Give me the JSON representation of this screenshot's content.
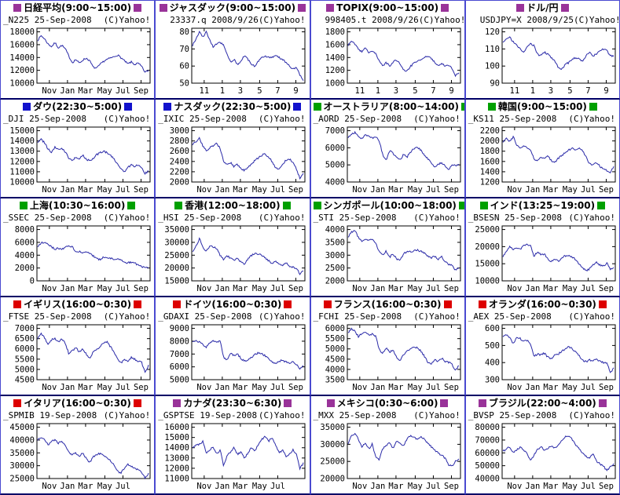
{
  "copyright_label": "(C)Yahoo!",
  "palette": {
    "purple": "#993399",
    "blue": "#1212cc",
    "green": "#00a000",
    "red": "#dd0000",
    "line": "#2a2aa8",
    "plot_border": "#000000",
    "cell_border": "#4a4ad0",
    "row_border": "#000066"
  },
  "chart_data": [
    {
      "type": "line",
      "market": "日経平均",
      "hours": "(9:00~15:00)",
      "marker": "purple",
      "label": "_N225 25-Sep-2008",
      "y_ticks": [
        18000,
        16000,
        14000,
        12000,
        10000
      ],
      "x_labels": [
        "Nov",
        "Jan",
        "Mar",
        "May",
        "Jul",
        "Sep"
      ],
      "values": [
        16700,
        17400,
        16900,
        16100,
        15700,
        16300,
        15500,
        15900,
        15300,
        14200,
        13200,
        13700,
        13100,
        13600,
        13900,
        13500,
        12500,
        12300,
        12900,
        13400,
        13700,
        13900,
        14100,
        14400,
        14000,
        13500,
        13000,
        13300,
        12900,
        13100,
        12600,
        11700,
        12000
      ]
    },
    {
      "type": "line",
      "market": "ジャスダック",
      "hours": "(9:00~15:00)",
      "marker": "purple",
      "label": "23337.q 2008/9/26",
      "y_ticks": [
        80,
        70,
        60,
        50
      ],
      "x_labels": [
        "11",
        "1",
        "3",
        "5",
        "7",
        "9"
      ],
      "values": [
        72,
        76,
        80,
        77,
        80,
        75,
        71,
        73,
        74,
        72,
        67,
        62,
        64,
        61,
        63,
        66,
        64,
        61,
        60,
        63,
        65,
        66,
        65,
        65,
        66,
        65,
        64,
        62,
        60,
        58,
        59,
        55,
        52
      ]
    },
    {
      "type": "line",
      "market": "TOPIX",
      "hours": "(9:00~15:00)",
      "marker": "purple",
      "label": "998405.t 2008/9/26",
      "y_ticks": [
        1800,
        1600,
        1400,
        1200,
        1000
      ],
      "x_labels": [
        "11",
        "1",
        "3",
        "5",
        "7",
        "9"
      ],
      "values": [
        1590,
        1650,
        1610,
        1530,
        1490,
        1550,
        1470,
        1510,
        1460,
        1350,
        1270,
        1320,
        1270,
        1330,
        1360,
        1310,
        1200,
        1180,
        1260,
        1310,
        1340,
        1370,
        1400,
        1420,
        1380,
        1330,
        1280,
        1310,
        1260,
        1280,
        1230,
        1120,
        1150
      ]
    },
    {
      "type": "line",
      "market": "ドル/円",
      "hours": "",
      "marker": "purple",
      "label": "USDJPY=X 2008/9/25",
      "y_ticks": [
        120,
        110,
        100,
        90
      ],
      "x_labels": [
        "11",
        "1",
        "3",
        "5",
        "7",
        "9"
      ],
      "values": [
        114,
        116,
        117,
        114,
        112,
        110,
        108,
        111,
        113,
        112,
        107,
        106,
        108,
        107,
        105,
        103,
        99,
        98,
        101,
        102,
        104,
        105,
        104,
        103,
        106,
        108,
        106,
        107,
        109,
        110,
        109,
        106,
        106
      ]
    },
    {
      "type": "line",
      "market": "ダウ",
      "hours": "(22:30~5:00)",
      "marker": "blue",
      "label": "_DJI 25-Sep-2008",
      "y_ticks": [
        15000,
        14000,
        13000,
        12000,
        11000,
        10000
      ],
      "x_labels": [
        "Nov",
        "Jan",
        "Mar",
        "May",
        "Jul",
        "Sep"
      ],
      "values": [
        13900,
        14150,
        13800,
        13200,
        12900,
        13400,
        13250,
        13300,
        12900,
        12300,
        12100,
        12400,
        12250,
        12600,
        12250,
        12050,
        12300,
        12650,
        12850,
        13000,
        12850,
        12600,
        12250,
        11800,
        11250,
        11000,
        11400,
        11650,
        11500,
        11700,
        11350,
        10850,
        11050
      ]
    },
    {
      "type": "line",
      "market": "ナスダック",
      "hours": "(22:30~5:00)",
      "marker": "blue",
      "label": "_IXIC 25-Sep-2008",
      "y_ticks": [
        3000,
        2800,
        2600,
        2400,
        2200,
        2000
      ],
      "x_labels": [
        "Nov",
        "Jan",
        "Mar",
        "May",
        "Jul",
        "Sep"
      ],
      "values": [
        2720,
        2790,
        2850,
        2700,
        2610,
        2670,
        2700,
        2750,
        2650,
        2400,
        2330,
        2380,
        2300,
        2340,
        2250,
        2230,
        2290,
        2350,
        2420,
        2470,
        2520,
        2550,
        2480,
        2400,
        2280,
        2250,
        2350,
        2420,
        2450,
        2380,
        2250,
        2080,
        2180
      ]
    },
    {
      "type": "line",
      "market": "オーストラリア",
      "hours": "(8:00~14:00)",
      "marker": "green",
      "label": "_AORD 25-Sep-2008",
      "y_ticks": [
        7000,
        6000,
        5000,
        4000
      ],
      "x_labels": [
        "Nov",
        "Jan",
        "Mar",
        "May",
        "Jul",
        "Sep"
      ],
      "values": [
        6600,
        6800,
        6900,
        6650,
        6550,
        6750,
        6650,
        6550,
        6650,
        6400,
        5600,
        5300,
        5850,
        5650,
        5450,
        5300,
        5600,
        5450,
        5750,
        5950,
        6050,
        5850,
        5600,
        5350,
        5100,
        4900,
        5050,
        5100,
        4950,
        4700,
        5050,
        4950,
        5000
      ]
    },
    {
      "type": "line",
      "market": "韓国",
      "hours": "(9:00~15:00)",
      "marker": "green",
      "label": "_KS11 25-Sep-2008",
      "y_ticks": [
        2200,
        2000,
        1800,
        1600,
        1400,
        1200
      ],
      "x_labels": [
        "Nov",
        "Jan",
        "Mar",
        "May",
        "Jul",
        "Sep"
      ],
      "values": [
        1980,
        2060,
        1990,
        2080,
        1920,
        1860,
        1920,
        1870,
        1830,
        1640,
        1600,
        1690,
        1650,
        1700,
        1620,
        1580,
        1660,
        1720,
        1770,
        1820,
        1860,
        1830,
        1870,
        1810,
        1690,
        1560,
        1530,
        1580,
        1510,
        1450,
        1420,
        1390,
        1490
      ]
    },
    {
      "type": "line",
      "market": "上海",
      "hours": "(10:30~16:00)",
      "marker": "green",
      "label": "_SSEC 25-Sep-2008",
      "y_ticks": [
        8000,
        6000,
        4000,
        2000,
        0
      ],
      "x_labels": [
        "Nov",
        "Jan",
        "Mar",
        "May",
        "Jul",
        "Sep"
      ],
      "values": [
        5400,
        5900,
        6100,
        5700,
        5300,
        4900,
        5100,
        4950,
        5250,
        5350,
        5400,
        4450,
        4550,
        4350,
        4550,
        4300,
        3900,
        3450,
        3350,
        3650,
        3700,
        3550,
        3400,
        3500,
        3250,
        2900,
        2800,
        2900,
        2750,
        2450,
        2300,
        1950,
        2150
      ]
    },
    {
      "type": "line",
      "market": "香港",
      "hours": "(12:00~18:00)",
      "marker": "green",
      "label": "_HSI 25-Sep-2008",
      "y_ticks": [
        35000,
        30000,
        25000,
        20000,
        15000
      ],
      "x_labels": [
        "Nov",
        "Jan",
        "Mar",
        "May",
        "Jul",
        "Sep"
      ],
      "values": [
        26500,
        28500,
        31500,
        28000,
        26500,
        28800,
        28200,
        27500,
        24800,
        23200,
        24800,
        23800,
        22800,
        23800,
        22200,
        21500,
        23500,
        24800,
        25800,
        25500,
        24800,
        24000,
        22800,
        21800,
        22500,
        21300,
        21000,
        22300,
        20800,
        20300,
        19800,
        17800,
        18800
      ]
    },
    {
      "type": "line",
      "market": "シンガポール",
      "hours": "(10:00~18:00)",
      "marker": "green",
      "label": "_STI 25-Sep-2008",
      "y_ticks": [
        4000,
        3500,
        3000,
        2500,
        2000
      ],
      "x_labels": [
        "Nov",
        "Jan",
        "Mar",
        "May",
        "Jul",
        "Sep"
      ],
      "values": [
        3720,
        3900,
        3950,
        3680,
        3520,
        3650,
        3570,
        3620,
        3450,
        3120,
        3000,
        3160,
        2920,
        3060,
        2860,
        2780,
        3050,
        3150,
        3130,
        3180,
        3200,
        3150,
        3080,
        2980,
        2900,
        2950,
        2850,
        2950,
        2750,
        2650,
        2600,
        2420,
        2500
      ]
    },
    {
      "type": "line",
      "market": "インド",
      "hours": "(13:25~19:00)",
      "marker": "green",
      "label": "_BSESN 25-Sep-2008",
      "y_ticks": [
        25000,
        20000,
        15000,
        10000
      ],
      "x_labels": [
        "Nov",
        "Jan",
        "Mar",
        "May",
        "Jul",
        "Sep"
      ],
      "values": [
        17200,
        18700,
        20000,
        19000,
        19600,
        19300,
        20300,
        20700,
        20300,
        17200,
        18500,
        17600,
        17900,
        16300,
        15600,
        16500,
        15700,
        16700,
        17300,
        17500,
        16900,
        16300,
        15000,
        13800,
        13000,
        13500,
        14600,
        15400,
        14600,
        14300,
        15200,
        13400,
        13700
      ]
    },
    {
      "type": "line",
      "market": "イギリス",
      "hours": "(16:00~0:30)",
      "marker": "red",
      "label": "_FTSE 25-Sep-2008",
      "y_ticks": [
        7000,
        6500,
        6000,
        5500,
        5000,
        4500
      ],
      "x_labels": [
        "Nov",
        "Jan",
        "Mar",
        "May",
        "Jul",
        "Sep"
      ],
      "values": [
        6500,
        6730,
        6550,
        6200,
        6450,
        6500,
        6350,
        6480,
        6250,
        5750,
        5900,
        6050,
        5850,
        6000,
        5750,
        5550,
        5850,
        6000,
        6100,
        6300,
        6350,
        6100,
        5850,
        5550,
        5300,
        5500,
        5350,
        5600,
        5500,
        5400,
        5350,
        4850,
        5200
      ]
    },
    {
      "type": "line",
      "market": "ドイツ",
      "hours": "(16:00~0:30)",
      "marker": "red",
      "label": "_GDAXI 25-Sep-2008",
      "y_ticks": [
        9000,
        8000,
        7000,
        6000,
        5000
      ],
      "x_labels": [
        "Nov",
        "Jan",
        "Mar",
        "May",
        "Jul",
        "Sep"
      ],
      "values": [
        7900,
        8050,
        7950,
        7750,
        7550,
        7850,
        8000,
        7900,
        8050,
        6700,
        6500,
        7050,
        6850,
        7000,
        6650,
        6450,
        6550,
        6750,
        6950,
        7100,
        7050,
        6850,
        6600,
        6350,
        6250,
        6450,
        6500,
        6400,
        6300,
        6450,
        6200,
        5850,
        6100
      ]
    },
    {
      "type": "line",
      "market": "フランス",
      "hours": "(16:00~0:30)",
      "marker": "red",
      "label": "_FCHI 25-Sep-2008",
      "y_ticks": [
        6000,
        5500,
        5000,
        4500,
        4000,
        3500
      ],
      "x_labels": [
        "Nov",
        "Jan",
        "Mar",
        "May",
        "Jul",
        "Sep"
      ],
      "values": [
        5780,
        6000,
        5850,
        5600,
        5750,
        5850,
        5650,
        5750,
        5600,
        4950,
        4800,
        5050,
        4850,
        4950,
        4600,
        4450,
        4700,
        4900,
        5000,
        5100,
        5050,
        4900,
        4650,
        4350,
        4250,
        4450,
        4400,
        4550,
        4400,
        4350,
        4250,
        3950,
        4200
      ]
    },
    {
      "type": "line",
      "market": "オランダ",
      "hours": "(16:00~0:30)",
      "marker": "red",
      "label": "_AEX 25-Sep-2008",
      "y_ticks": [
        600,
        500,
        400,
        300
      ],
      "x_labels": [
        "Nov",
        "Jan",
        "Mar",
        "May",
        "Jul",
        "Sep"
      ],
      "values": [
        548,
        565,
        545,
        510,
        545,
        540,
        525,
        530,
        510,
        435,
        450,
        445,
        455,
        430,
        425,
        445,
        450,
        465,
        480,
        492,
        480,
        465,
        440,
        415,
        405,
        415,
        410,
        418,
        408,
        400,
        395,
        345,
        365
      ]
    },
    {
      "type": "line",
      "market": "イタリア",
      "hours": "(16:00~0:30)",
      "marker": "red",
      "label": "_SPMIB 19-Sep-2008",
      "y_ticks": [
        45000,
        40000,
        35000,
        30000,
        25000
      ],
      "x_labels": [
        "Nov",
        "Jan",
        "Mar",
        "May",
        "Jul"
      ],
      "values": [
        40000,
        41200,
        40300,
        38000,
        39800,
        40000,
        38800,
        39500,
        38000,
        35200,
        34300,
        35000,
        33800,
        34800,
        33000,
        31200,
        33500,
        34300,
        34800,
        34300,
        33200,
        31800,
        30300,
        28000,
        27000,
        29000,
        30500,
        29800,
        29000,
        28300,
        27500,
        25300,
        26800
      ]
    },
    {
      "type": "line",
      "market": "カナダ",
      "hours": "(23:30~6:30)",
      "marker": "purple",
      "label": "_GSPTSE 19-Sep-2008",
      "y_ticks": [
        16000,
        15000,
        14000,
        13000,
        12000,
        11000
      ],
      "x_labels": [
        "Nov",
        "Jan",
        "Mar",
        "May",
        "Jul"
      ],
      "values": [
        14000,
        14250,
        14350,
        14600,
        13400,
        13800,
        14050,
        13450,
        13750,
        12200,
        13200,
        13600,
        14050,
        13350,
        13550,
        12950,
        13500,
        14000,
        13600,
        14350,
        14800,
        15100,
        14600,
        15050,
        14200,
        13500,
        13750,
        13150,
        13350,
        13800,
        13400,
        11950,
        12500
      ]
    },
    {
      "type": "line",
      "market": "メキシコ",
      "hours": "(0:30~6:00)",
      "marker": "purple",
      "label": "_MXX 25-Sep-2008",
      "y_ticks": [
        35000,
        30000,
        25000,
        20000
      ],
      "x_labels": [
        "Nov",
        "Jan",
        "Mar",
        "May",
        "Jul",
        "Sep"
      ],
      "values": [
        30200,
        32500,
        33100,
        31500,
        29200,
        30500,
        28700,
        30100,
        26000,
        25600,
        28700,
        29500,
        30700,
        28700,
        31000,
        30200,
        29700,
        31500,
        32600,
        32000,
        31300,
        32300,
        31500,
        30300,
        29300,
        28300,
        27500,
        26800,
        26000,
        24000,
        23600,
        25000,
        25600
      ]
    },
    {
      "type": "line",
      "market": "ブラジル",
      "hours": "(22:00~4:00)",
      "marker": "purple",
      "label": "_BVSP 25-Sep-2008",
      "y_ticks": [
        80000,
        70000,
        60000,
        50000,
        40000
      ],
      "x_labels": [
        "Nov",
        "Jan",
        "Mar",
        "May",
        "Jul",
        "Sep"
      ],
      "values": [
        61000,
        63500,
        64500,
        60500,
        62500,
        64500,
        62000,
        59500,
        53500,
        58500,
        62500,
        65000,
        61500,
        63500,
        65500,
        63500,
        66500,
        69500,
        72500,
        73000,
        70500,
        66500,
        63000,
        59500,
        57000,
        55500,
        59500,
        53500,
        51500,
        49500,
        46500,
        49000,
        51500
      ]
    }
  ]
}
